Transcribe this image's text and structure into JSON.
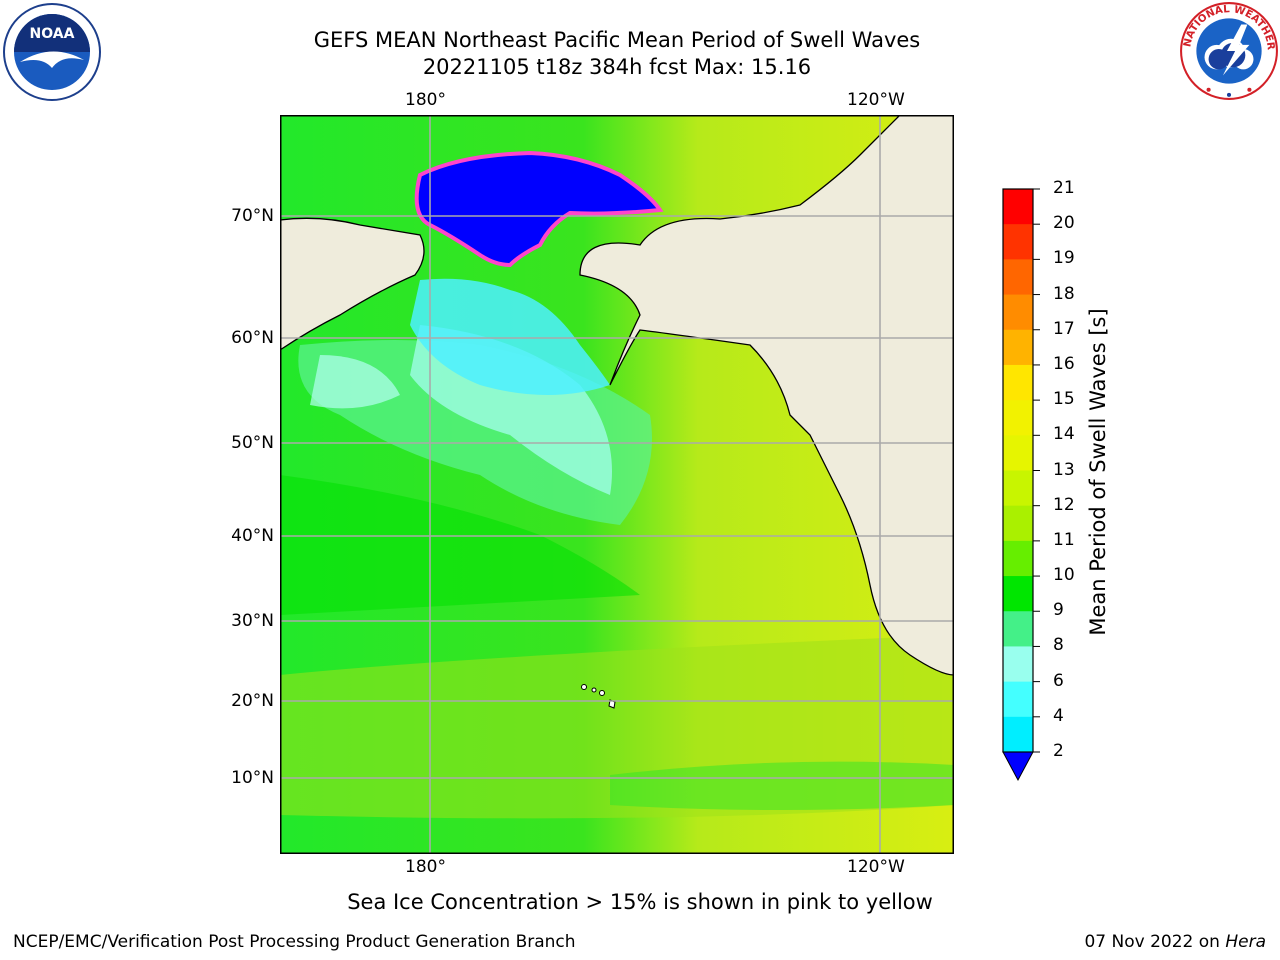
{
  "title": {
    "line1": "GEFS MEAN Northeast Pacific Mean Period of Swell Waves",
    "line2": "20221105 t18z 384h fcst   Max: 15.16"
  },
  "logos": {
    "left": "noaa-logo",
    "left_text": "NOAA",
    "right": "nws-logo",
    "right_text": "NATIONAL WEATHER SERVICE"
  },
  "map": {
    "lon_labels_top": [
      "180°",
      "120°W"
    ],
    "lon_labels_bottom": [
      "180°",
      "120°W"
    ],
    "lat_labels": [
      "70°N",
      "60°N",
      "50°N",
      "40°N",
      "30°N",
      "20°N",
      "10°N"
    ],
    "gridlines": true,
    "land_color": "#efecdc",
    "ice_color": "#0000ff"
  },
  "colorbar": {
    "label": "Mean Period of Swell Waves [s]",
    "ticks": [
      "21",
      "20",
      "19",
      "18",
      "17",
      "16",
      "15",
      "14",
      "13",
      "12",
      "11",
      "10",
      "9",
      "8",
      "6",
      "4",
      "2"
    ],
    "colors": [
      "#ff0000",
      "#ff3300",
      "#ff6600",
      "#ff8c00",
      "#ffb300",
      "#ffe600",
      "#f2f200",
      "#e6f500",
      "#c8f500",
      "#aaf000",
      "#66ee00",
      "#00e600",
      "#44f088",
      "#99ffee",
      "#44ffff",
      "#00eeff",
      "#0088ff"
    ],
    "extend_color": "#0000ff"
  },
  "caption": "Sea Ice Concentration > 15% is shown in pink to yellow",
  "footer": {
    "left": "NCEP/EMC/Verification Post Processing Product Generation Branch",
    "date": "07 Nov 2022 on ",
    "host": "Hera"
  }
}
